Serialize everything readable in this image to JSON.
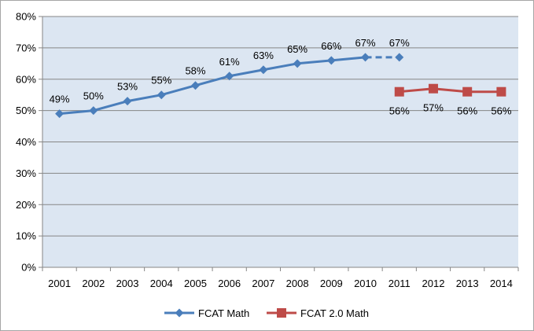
{
  "chart_data": {
    "type": "line",
    "title": "",
    "xlabel": "",
    "ylabel": "",
    "ylim": [
      0,
      80
    ],
    "y_ticks": [
      "0%",
      "10%",
      "20%",
      "30%",
      "40%",
      "50%",
      "60%",
      "70%",
      "80%"
    ],
    "categories": [
      "2001",
      "2002",
      "2003",
      "2004",
      "2005",
      "2006",
      "2007",
      "2008",
      "2009",
      "2010",
      "2011",
      "2012",
      "2013",
      "2014"
    ],
    "grid": true,
    "legend": "bottom",
    "series": [
      {
        "name": "FCAT Math",
        "color": "#4a7ebb",
        "marker": "diamond",
        "values": [
          49,
          50,
          53,
          55,
          58,
          61,
          63,
          65,
          66,
          67,
          67,
          null,
          null,
          null
        ],
        "labels": [
          "49%",
          "50%",
          "53%",
          "55%",
          "58%",
          "61%",
          "63%",
          "65%",
          "66%",
          "67%",
          "67%",
          "",
          "",
          ""
        ],
        "dashed_from_index": 9
      },
      {
        "name": "FCAT 2.0 Math",
        "color": "#be4b48",
        "marker": "square",
        "values": [
          null,
          null,
          null,
          null,
          null,
          null,
          null,
          null,
          null,
          null,
          56,
          57,
          56,
          56
        ],
        "labels": [
          "",
          "",
          "",
          "",
          "",
          "",
          "",
          "",
          "",
          "",
          "56%",
          "57%",
          "56%",
          "56%"
        ]
      }
    ]
  }
}
